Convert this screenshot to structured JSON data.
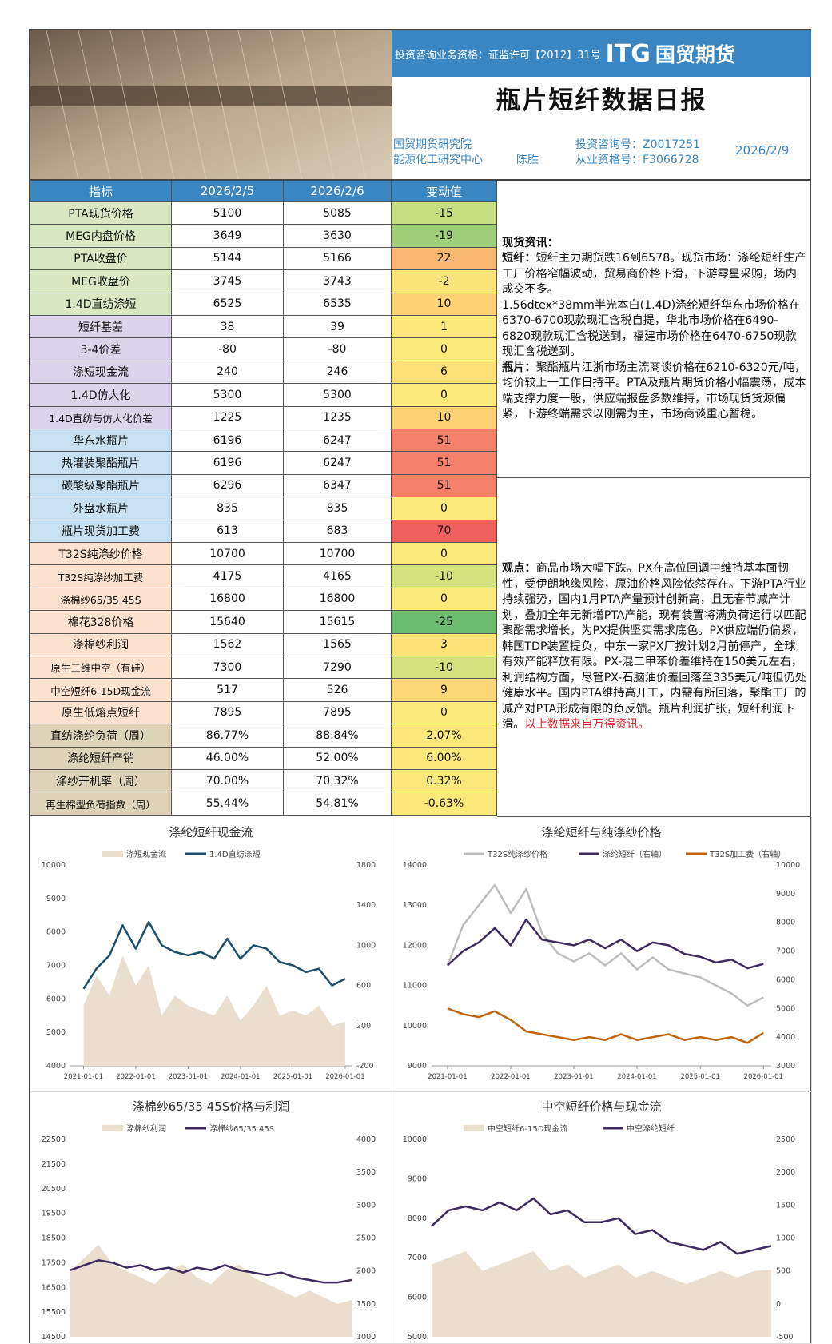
{
  "header": {
    "qualification": "投资咨询业务资格：证监许可【2012】31号",
    "logo_mark": "ITG",
    "logo_name": "国贸期货",
    "title": "瓶片短纤数据日报",
    "institute": "国贸期货研究院",
    "center": "能源化工研究中心",
    "author": "陈胜",
    "consult_no": "投资咨询号：Z0017251",
    "license_no": "从业资格号：F3066728",
    "date": "2026/2/9"
  },
  "table": {
    "columns": [
      "指标",
      "2026/2/5",
      "2026/2/6",
      "变动值"
    ],
    "rows": [
      [
        "PTA现货价格",
        "5100",
        "5085",
        "-15"
      ],
      [
        "MEG内盘价格",
        "3649",
        "3630",
        "-19"
      ],
      [
        "PTA收盘价",
        "5144",
        "5166",
        "22"
      ],
      [
        "MEG收盘价",
        "3745",
        "3743",
        "-2"
      ],
      [
        "1.4D直纺涤短",
        "6525",
        "6535",
        "10"
      ],
      [
        "短纤基差",
        "38",
        "39",
        "1"
      ],
      [
        "3-4价差",
        "-80",
        "-80",
        "0"
      ],
      [
        "涤短现金流",
        "240",
        "246",
        "6"
      ],
      [
        "1.4D仿大化",
        "5300",
        "5300",
        "0"
      ],
      [
        "1.4D直纺与仿大化价差",
        "1225",
        "1235",
        "10"
      ],
      [
        "华东水瓶片",
        "6196",
        "6247",
        "51"
      ],
      [
        "热灌装聚酯瓶片",
        "6196",
        "6247",
        "51"
      ],
      [
        "碳酸级聚酯瓶片",
        "6296",
        "6347",
        "51"
      ],
      [
        "外盘水瓶片",
        "835",
        "835",
        "0"
      ],
      [
        "瓶片现货加工费",
        "613",
        "683",
        "70"
      ],
      [
        "T32S纯涤纱价格",
        "10700",
        "10700",
        "0"
      ],
      [
        "T32S纯涤纱加工费",
        "4175",
        "4165",
        "-10"
      ],
      [
        "涤棉纱65/35 45S",
        "16800",
        "16800",
        "0"
      ],
      [
        "棉花328价格",
        "15640",
        "15615",
        "-25"
      ],
      [
        "涤棉纱利润",
        "1562",
        "1565",
        "3"
      ],
      [
        "原生三维中空（有硅）",
        "7300",
        "7290",
        "-10"
      ],
      [
        "中空短纤6-15D现金流",
        "517",
        "526",
        "9"
      ],
      [
        "原生低熔点短纤",
        "7895",
        "7895",
        "0"
      ],
      [
        "直纺涤纶负荷（周）",
        "86.77%",
        "88.84%",
        "2.07%"
      ],
      [
        "涤纶短纤产销",
        "46.00%",
        "52.00%",
        "6.00%"
      ],
      [
        "涤纱开机率（周）",
        "70.00%",
        "70.32%",
        "0.32%"
      ],
      [
        "再生棉型负荷指数（周）",
        "55.44%",
        "54.81%",
        "-0.63%"
      ]
    ]
  },
  "commentary": {
    "spot_heading": "现货资讯：",
    "staple_label": "短纤：",
    "staple_text": "短纤主力期货跌16到6578。现货市场：涤纶短纤生产工厂价格窄幅波动，贸易商价格下滑，下游零星采购，场内成交不多。",
    "staple_detail": "1.56dtex*38mm半光本白(1.4D)涤纶短纤华东市场价格在6370-6700现款现汇含税自提，华北市场价格在6490-6820现款现汇含税送到，福建市场价格在6470-6750现款现汇含税送到。",
    "bottle_label": "瓶片：",
    "bottle_text": "聚酯瓶片江浙市场主流商谈价格在6210-6320元/吨，均价较上一工作日持平。PTA及瓶片期货价格小幅震荡，成本端支撑力度一般，供应端报盘多数维持，市场现货货源偏紧，下游终端需求以刚需为主，市场商谈重心暂稳。",
    "view_label": "观点：",
    "view_text": "商品市场大幅下跌。PX在高位回调中维持基本面韧性，受伊朗地缘风险，原油价格风险依然存在。下游PTA行业持续强势，国内1月PTA产量预计创新高，且无春节减产计划，叠加全年无新增PTA产能，现有装置将满负荷运行以匹配聚酯需求增长，为PX提供坚实需求底色。PX供应端仍偏紧，韩国TDP装置提负，中东一家PX厂按计划2月前停产，全球有效产能释放有限。PX-混二甲苯价差维持在150美元左右，利润结构方面，尽管PX-石脑油价差回落至335美元/吨但仍处健康水平。国内PTA维持高开工，内需有所回落，聚酯工厂的减产对PTA形成有限的负反馈。瓶片利润扩张，短纤利润下滑。",
    "source_note": "以上数据来自万得资讯。"
  },
  "chart_data": [
    {
      "type": "line",
      "title": "涤纶短纤现金流",
      "x": [
        "2021-01-01",
        "2021-04-01",
        "2021-07-01",
        "2021-10-01",
        "2022-01-01",
        "2022-04-01",
        "2022-07-01",
        "2022-10-01",
        "2023-01-01",
        "2023-04-01",
        "2023-07-01",
        "2023-10-01",
        "2024-01-01",
        "2024-04-01",
        "2024-07-01",
        "2024-10-01",
        "2025-01-01",
        "2025-04-01",
        "2025-07-01",
        "2025-10-01",
        "2026-01-01"
      ],
      "xlim": [
        "2020-10-01",
        "2026-02-15"
      ],
      "xticks": [
        "2021-01-01",
        "2022-01-01",
        "2023-01-01",
        "2024-01-01",
        "2025-01-01",
        "2026-01-01"
      ],
      "ylim": [
        4000,
        10000
      ],
      "yticks": [
        4000,
        5000,
        6000,
        7000,
        8000,
        9000,
        10000
      ],
      "y2lim": [
        -200,
        1800
      ],
      "y2ticks": [
        -200,
        200,
        600,
        1000,
        1400,
        1800
      ],
      "series": [
        {
          "name": "涤短现金流",
          "type": "area",
          "axis": "y2",
          "color": "#eadfcf",
          "values": [
            400,
            700,
            500,
            900,
            600,
            800,
            300,
            500,
            400,
            350,
            300,
            500,
            250,
            400,
            600,
            300,
            350,
            300,
            400,
            200,
            240
          ]
        },
        {
          "name": "1.4D直纺涤短",
          "type": "line",
          "axis": "y",
          "color": "#1d4f6a",
          "values": [
            6300,
            6900,
            7300,
            8200,
            7500,
            8300,
            7600,
            7400,
            7300,
            7400,
            7200,
            7800,
            7200,
            7600,
            7500,
            7100,
            7000,
            6800,
            6900,
            6400,
            6600
          ]
        }
      ]
    },
    {
      "type": "line",
      "title": "涤纶短纤与纯涤纱价格",
      "x": [
        "2021-01-01",
        "2021-04-01",
        "2021-07-01",
        "2021-10-01",
        "2022-01-01",
        "2022-04-01",
        "2022-07-01",
        "2022-10-01",
        "2023-01-01",
        "2023-04-01",
        "2023-07-01",
        "2023-10-01",
        "2024-01-01",
        "2024-04-01",
        "2024-07-01",
        "2024-10-01",
        "2025-01-01",
        "2025-04-01",
        "2025-07-01",
        "2025-10-01",
        "2026-01-01"
      ],
      "xlim": [
        "2020-10-01",
        "2026-02-15"
      ],
      "xticks": [
        "2021-01-01",
        "2022-01-01",
        "2023-01-01",
        "2024-01-01",
        "2025-01-01",
        "2026-01-01"
      ],
      "ylim": [
        9000,
        14000
      ],
      "yticks": [
        9000,
        10000,
        11000,
        12000,
        13000,
        14000
      ],
      "y2lim": [
        3000,
        10000
      ],
      "y2ticks": [
        3000,
        4000,
        5000,
        6000,
        7000,
        8000,
        9000,
        10000
      ],
      "series": [
        {
          "name": "T32S纯涤纱价格",
          "type": "line",
          "axis": "y",
          "color": "#bdbdbd",
          "values": [
            11500,
            12500,
            13000,
            13500,
            12800,
            13400,
            12300,
            11800,
            11600,
            11800,
            11500,
            11800,
            11400,
            11700,
            11400,
            11300,
            11200,
            11000,
            10800,
            10500,
            10700
          ]
        },
        {
          "name": "涤纶短纤（右轴）",
          "type": "line",
          "axis": "y2",
          "color": "#3e2a5c",
          "values": [
            6500,
            7000,
            7300,
            7800,
            7200,
            8100,
            7400,
            7300,
            7200,
            7400,
            7100,
            7400,
            7000,
            7300,
            7200,
            6900,
            6800,
            6600,
            6700,
            6400,
            6550
          ]
        },
        {
          "name": "T32S加工费（右轴）",
          "type": "line",
          "axis": "y2",
          "color": "#c0640c",
          "values": [
            5000,
            4800,
            4700,
            4900,
            4600,
            4200,
            4100,
            4000,
            3900,
            4000,
            3900,
            4100,
            3900,
            4000,
            4100,
            3900,
            4000,
            3900,
            4000,
            3800,
            4150
          ]
        }
      ]
    },
    {
      "type": "line",
      "title": "涤棉纱65/35 45S价格与利润",
      "ylim": [
        14500,
        22500
      ],
      "yticks": [
        14500,
        15500,
        16500,
        17500,
        18500,
        19500,
        20500,
        21500,
        22500
      ],
      "y2lim": [
        1000,
        4000
      ],
      "y2ticks": [
        1000,
        1500,
        2000,
        2500,
        3000,
        3500,
        4000
      ],
      "series": [
        {
          "name": "涤棉纱利润",
          "type": "area",
          "axis": "y2",
          "color": "#eadfcf",
          "values": [
            2000,
            2200,
            2400,
            2100,
            2000,
            1900,
            1800,
            2000,
            2100,
            1900,
            1800,
            2000,
            2100,
            1900,
            1800,
            1700,
            1600,
            1700,
            1600,
            1500,
            1560
          ]
        },
        {
          "name": "涤棉纱65/35 45S",
          "type": "line",
          "axis": "y",
          "color": "#3e2a5c",
          "values": [
            17200,
            17400,
            17600,
            17500,
            17300,
            17400,
            17200,
            17300,
            17100,
            17300,
            17200,
            17400,
            17200,
            17100,
            17000,
            17100,
            16900,
            16800,
            16700,
            16700,
            16800
          ]
        }
      ]
    },
    {
      "type": "line",
      "title": "中空短纤价格与现金流",
      "ylim": [
        5000,
        10000
      ],
      "yticks": [
        5000,
        6000,
        7000,
        8000,
        9000,
        10000
      ],
      "y2lim": [
        -500,
        2500
      ],
      "y2ticks": [
        -500,
        0,
        500,
        1000,
        1500,
        2000,
        2500
      ],
      "series": [
        {
          "name": "中空短纤6-15D现金流",
          "type": "area",
          "axis": "y2",
          "color": "#eadfcf",
          "values": [
            600,
            700,
            800,
            500,
            600,
            700,
            800,
            500,
            600,
            400,
            500,
            600,
            400,
            500,
            400,
            300,
            400,
            500,
            400,
            500,
            517
          ]
        },
        {
          "name": "中空涤纶短纤",
          "type": "line",
          "axis": "y",
          "color": "#3e2a5c",
          "values": [
            7800,
            8200,
            8300,
            8200,
            8400,
            8200,
            8500,
            8100,
            8200,
            7900,
            7900,
            8000,
            7600,
            7700,
            7400,
            7300,
            7200,
            7400,
            7100,
            7200,
            7300
          ]
        }
      ]
    }
  ]
}
